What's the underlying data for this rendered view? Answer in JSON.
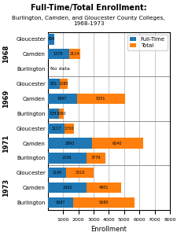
{
  "chart_data": {
    "type": "bar",
    "orientation": "horizontal",
    "stacked": false,
    "title": "Full-Time/Total Enrollment:",
    "subtitle": "Burlington, Camden, and Gloucester County Colleges, 1968-1973",
    "xlabel": "Enrollment",
    "groups": [
      "1968",
      "1969",
      "1971",
      "1973"
    ],
    "categories": [
      "Gloucester",
      "Camden",
      "Burlington",
      "Gloucester",
      "Camden",
      "Burlington",
      "Gloucester",
      "Camden",
      "Burlington",
      "Gloucester",
      "Camden",
      "Burlington"
    ],
    "series": [
      {
        "name": "Full-Time",
        "values": [
          434,
          1379,
          null,
          801,
          1897,
          728,
          1117,
          2893,
          2536,
          1190,
          2562,
          1687
        ]
      },
      {
        "name": "Total",
        "values": [
          434,
          2114,
          null,
          1280,
          5051,
          1060,
          1700,
          6240,
          3779,
          3010,
          4801,
          5680
        ]
      }
    ],
    "missing_label": "No data",
    "xlim": [
      0,
      8000
    ],
    "xticks": [
      1000,
      2000,
      3000,
      4000,
      5000,
      6000,
      7000,
      8000
    ],
    "grid": true,
    "legend": "upper right",
    "data_labels": true
  }
}
